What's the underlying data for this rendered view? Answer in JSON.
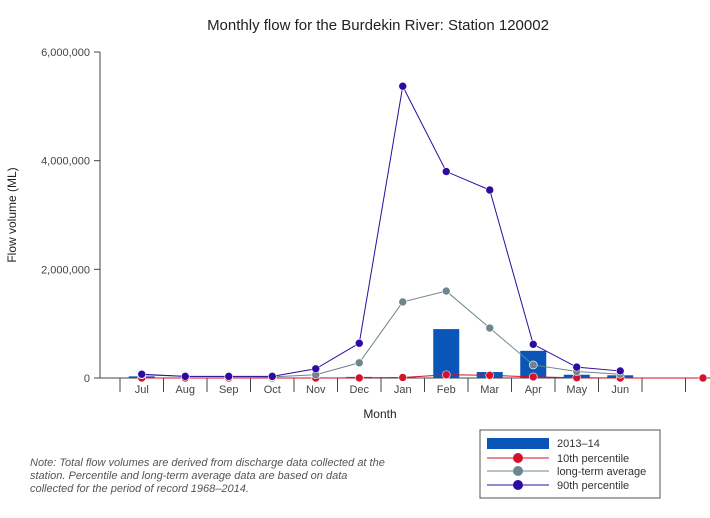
{
  "chart_data": {
    "type": "bar+line",
    "title": "Monthly flow for the Burdekin River: Station 120002",
    "xlabel": "Month",
    "ylabel": "Flow volume (ML)",
    "ylim": [
      0,
      6000000
    ],
    "yticks": [
      0,
      2000000,
      4000000,
      6000000
    ],
    "ytick_labels": [
      "0",
      "2,000,000",
      "4,000,000",
      "6,000,000"
    ],
    "categories": [
      "Jul",
      "Aug",
      "Sep",
      "Oct",
      "Nov",
      "Dec",
      "Jan",
      "Feb",
      "Mar",
      "Apr",
      "May",
      "Jun"
    ],
    "series": [
      {
        "name": "2013–14",
        "kind": "bar",
        "color": "#0a56b8",
        "values": [
          30000,
          5000,
          3000,
          2000,
          10000,
          20000,
          15000,
          900000,
          110000,
          500000,
          60000,
          50000
        ]
      },
      {
        "name": "10th percentile",
        "kind": "line",
        "color": "#d6112b",
        "values": [
          0,
          0,
          0,
          0,
          0,
          2000,
          10000,
          60000,
          50000,
          20000,
          5000,
          0
        ]
      },
      {
        "name": "long-term average",
        "kind": "line",
        "color": "#6e858c",
        "values": [
          60000,
          30000,
          25000,
          20000,
          60000,
          280000,
          1400000,
          1600000,
          920000,
          240000,
          120000,
          70000
        ]
      },
      {
        "name": "90th percentile",
        "kind": "line",
        "color": "#2e0ba0",
        "values": [
          70000,
          30000,
          30000,
          30000,
          170000,
          640000,
          5370000,
          3800000,
          3460000,
          620000,
          200000,
          130000
        ]
      }
    ],
    "legend_position": "bottom-right"
  },
  "note": "Note: Total flow volumes are derived from discharge data collected at the station. Percentile and long-term average data are based on data collected for the period of record 1968–2014."
}
